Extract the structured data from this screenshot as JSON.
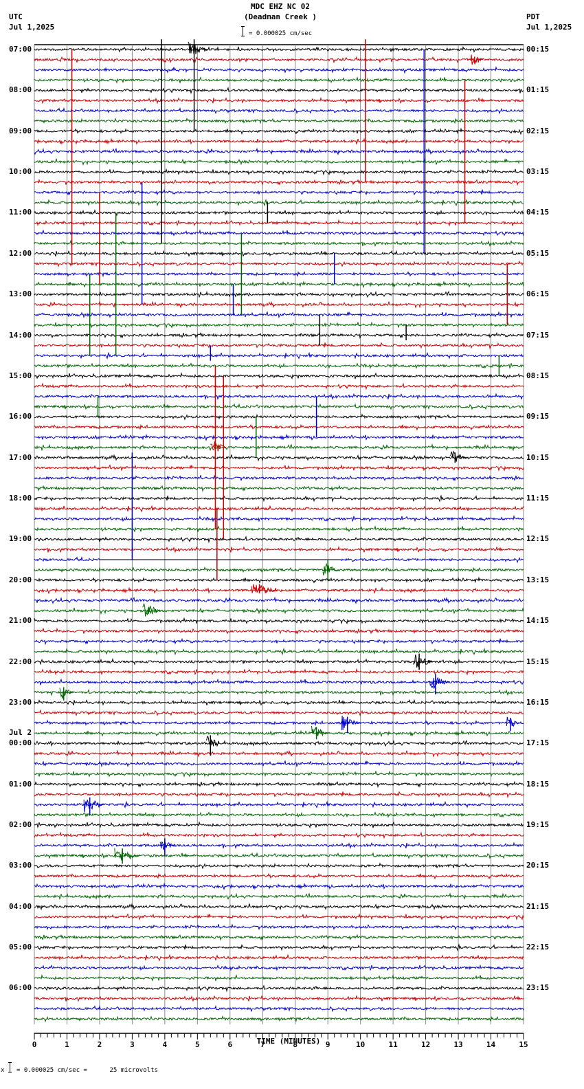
{
  "header": {
    "title": "MDC EHZ NC 02",
    "subtitle": "(Deadman Creek )",
    "scale_text": "= 0.000025 cm/sec",
    "left_tz": "UTC",
    "left_date": "Jul 1,2025",
    "right_tz": "PDT",
    "right_date": "Jul 1,2025"
  },
  "footer": {
    "scale_prefix": "x",
    "scale_text": "= 0.000025 cm/sec =      25 microvolts"
  },
  "chart_data": {
    "type": "line",
    "title": "MDC EHZ NC 02 (Deadman Creek )",
    "subtitle": "Helicorder 24h seismogram, 15-minute lines",
    "xlabel": "TIME (MINUTES)",
    "ylabel": "",
    "xlim": [
      0,
      15
    ],
    "x_ticks": [
      0,
      1,
      2,
      3,
      4,
      5,
      6,
      7,
      8,
      9,
      10,
      11,
      12,
      13,
      14,
      15
    ],
    "grid": true,
    "trace_colors": [
      "#000000",
      "#cc0000",
      "#0000cc",
      "#006600"
    ],
    "rows_per_hour": 4,
    "row_count": 96,
    "scale": "0.000025 cm/sec = 25 microvolts",
    "left_labels": [
      {
        "row": 0,
        "text": "07:00"
      },
      {
        "row": 4,
        "text": "08:00"
      },
      {
        "row": 8,
        "text": "09:00"
      },
      {
        "row": 12,
        "text": "10:00"
      },
      {
        "row": 16,
        "text": "11:00"
      },
      {
        "row": 20,
        "text": "12:00"
      },
      {
        "row": 24,
        "text": "13:00"
      },
      {
        "row": 28,
        "text": "14:00"
      },
      {
        "row": 32,
        "text": "15:00"
      },
      {
        "row": 36,
        "text": "16:00"
      },
      {
        "row": 40,
        "text": "17:00"
      },
      {
        "row": 44,
        "text": "18:00"
      },
      {
        "row": 48,
        "text": "19:00"
      },
      {
        "row": 52,
        "text": "20:00"
      },
      {
        "row": 56,
        "text": "21:00"
      },
      {
        "row": 60,
        "text": "22:00"
      },
      {
        "row": 64,
        "text": "23:00"
      },
      {
        "row": 68,
        "text": "00:00",
        "date": "Jul 2"
      },
      {
        "row": 72,
        "text": "01:00"
      },
      {
        "row": 76,
        "text": "02:00"
      },
      {
        "row": 80,
        "text": "03:00"
      },
      {
        "row": 84,
        "text": "04:00"
      },
      {
        "row": 88,
        "text": "05:00"
      },
      {
        "row": 92,
        "text": "06:00"
      }
    ],
    "right_labels": [
      {
        "row": 0,
        "text": "00:15"
      },
      {
        "row": 4,
        "text": "01:15"
      },
      {
        "row": 8,
        "text": "02:15"
      },
      {
        "row": 12,
        "text": "03:15"
      },
      {
        "row": 16,
        "text": "04:15"
      },
      {
        "row": 20,
        "text": "05:15"
      },
      {
        "row": 24,
        "text": "06:15"
      },
      {
        "row": 28,
        "text": "07:15"
      },
      {
        "row": 32,
        "text": "08:15"
      },
      {
        "row": 36,
        "text": "09:15"
      },
      {
        "row": 40,
        "text": "10:15"
      },
      {
        "row": 44,
        "text": "11:15"
      },
      {
        "row": 48,
        "text": "12:15"
      },
      {
        "row": 52,
        "text": "13:15"
      },
      {
        "row": 56,
        "text": "14:15"
      },
      {
        "row": 60,
        "text": "15:15"
      },
      {
        "row": 64,
        "text": "16:15"
      },
      {
        "row": 68,
        "text": "17:15"
      },
      {
        "row": 72,
        "text": "18:15"
      },
      {
        "row": 76,
        "text": "19:15"
      },
      {
        "row": 80,
        "text": "20:15"
      },
      {
        "row": 84,
        "text": "21:15"
      },
      {
        "row": 88,
        "text": "22:15"
      },
      {
        "row": 92,
        "text": "23:15"
      }
    ],
    "spikes": [
      {
        "row": 1,
        "minute": 1.15,
        "up": 1,
        "down": 20,
        "color": "#cc0000"
      },
      {
        "row": 0,
        "minute": 4.9,
        "up": 1,
        "down": 8,
        "color": "#000000",
        "coda": 0.6
      },
      {
        "row": 0,
        "minute": 3.9,
        "up": 1,
        "down": 19,
        "color": "#000000"
      },
      {
        "row": 0,
        "minute": 10.15,
        "up": 1,
        "down": 13,
        "color": "#cc0000"
      },
      {
        "row": 0,
        "minute": 11.95,
        "up": 0,
        "down": 20,
        "color": "#0000cc"
      },
      {
        "row": 4,
        "minute": 13.2,
        "up": 1,
        "down": 13,
        "color": "#cc0000"
      },
      {
        "row": 1,
        "minute": 13.5,
        "up": 0.3,
        "down": 0.3,
        "color": "#cc0000",
        "coda": 0.4
      },
      {
        "row": 16,
        "minute": 2.0,
        "up": 2,
        "down": 7,
        "color": "#cc0000"
      },
      {
        "row": 16,
        "minute": 3.3,
        "up": 3,
        "down": 9,
        "color": "#0000cc"
      },
      {
        "row": 16,
        "minute": 7.15,
        "up": 1,
        "down": 1,
        "color": "#000000"
      },
      {
        "row": 17,
        "minute": 2.5,
        "up": 1,
        "down": 13,
        "color": "#006600"
      },
      {
        "row": 22,
        "minute": 6.35,
        "up": 4,
        "down": 4,
        "color": "#006600"
      },
      {
        "row": 23,
        "minute": 1.7,
        "up": 1,
        "down": 7,
        "color": "#006600"
      },
      {
        "row": 24,
        "minute": 6.1,
        "up": 1,
        "down": 2,
        "color": "#0000cc"
      },
      {
        "row": 22,
        "minute": 9.2,
        "up": 2,
        "down": 1,
        "color": "#0000cc"
      },
      {
        "row": 25,
        "minute": 14.5,
        "up": 4,
        "down": 2,
        "color": "#cc0000"
      },
      {
        "row": 28,
        "minute": 8.75,
        "up": 2,
        "down": 1,
        "color": "#000000"
      },
      {
        "row": 28,
        "minute": 11.4,
        "up": 1,
        "down": 0.5,
        "color": "#000000"
      },
      {
        "row": 30,
        "minute": 5.4,
        "up": 1,
        "down": 0.5,
        "color": "#0000cc"
      },
      {
        "row": 31,
        "minute": 14.25,
        "up": 1,
        "down": 1,
        "color": "#006600"
      },
      {
        "row": 35,
        "minute": 1.95,
        "up": 1,
        "down": 1,
        "color": "#006600"
      },
      {
        "row": 36,
        "minute": 8.65,
        "up": 2,
        "down": 2,
        "color": "#0000cc"
      },
      {
        "row": 38,
        "minute": 6.8,
        "up": 2,
        "down": 2,
        "color": "#006600"
      },
      {
        "row": 40,
        "minute": 3.0,
        "up": 0.5,
        "down": 10,
        "color": "#0000cc"
      },
      {
        "row": 39,
        "minute": 5.55,
        "up": 8,
        "down": 8,
        "color": "#cc0000",
        "coda": 0.5
      },
      {
        "row": 40,
        "minute": 5.8,
        "up": 8,
        "down": 8,
        "color": "#cc0000"
      },
      {
        "row": 40,
        "minute": 12.9,
        "up": 0.5,
        "down": 0.5,
        "color": "#000000",
        "coda": 0.5
      },
      {
        "row": 47,
        "minute": 5.6,
        "up": 2,
        "down": 5,
        "color": "#cc0000"
      },
      {
        "row": 51,
        "minute": 9.0,
        "up": 1,
        "down": 1,
        "color": "#006600",
        "coda": 0.5
      },
      {
        "row": 53,
        "minute": 6.9,
        "up": 0.6,
        "down": 0.3,
        "color": "#cc0000",
        "coda": 0.8
      },
      {
        "row": 55,
        "minute": 3.5,
        "up": 0.3,
        "down": 0.3,
        "color": "#006600",
        "coda": 0.6
      },
      {
        "row": 60,
        "minute": 11.8,
        "up": 0.8,
        "down": 0.8,
        "color": "#000000",
        "coda": 0.6
      },
      {
        "row": 62,
        "minute": 12.3,
        "up": 0.8,
        "down": 1.2,
        "color": "#0000cc",
        "coda": 0.6
      },
      {
        "row": 63,
        "minute": 0.9,
        "up": 0.5,
        "down": 0.8,
        "color": "#006600",
        "coda": 0.4
      },
      {
        "row": 67,
        "minute": 8.65,
        "up": 0.6,
        "down": 0.6,
        "color": "#006600",
        "coda": 0.5
      },
      {
        "row": 66,
        "minute": 9.6,
        "up": 0.6,
        "down": 1.0,
        "color": "#0000cc",
        "coda": 0.6
      },
      {
        "row": 66,
        "minute": 14.6,
        "up": 0.5,
        "down": 0.8,
        "color": "#0000cc",
        "coda": 0.4
      },
      {
        "row": 68,
        "minute": 5.4,
        "up": 0.8,
        "down": 1.2,
        "color": "#000000",
        "coda": 0.4
      },
      {
        "row": 74,
        "minute": 1.7,
        "up": 0.7,
        "down": 1.0,
        "color": "#0000cc",
        "coda": 0.6
      },
      {
        "row": 78,
        "minute": 4.0,
        "up": 0.7,
        "down": 1.0,
        "color": "#0000cc",
        "coda": 0.5
      },
      {
        "row": 79,
        "minute": 2.7,
        "up": 0.7,
        "down": 0.8,
        "color": "#006600",
        "coda": 0.8
      }
    ],
    "flat_segments": [
      {
        "row": 50,
        "from_minute": 2.0,
        "to_minute": 9.4,
        "color": "#000000"
      }
    ]
  }
}
